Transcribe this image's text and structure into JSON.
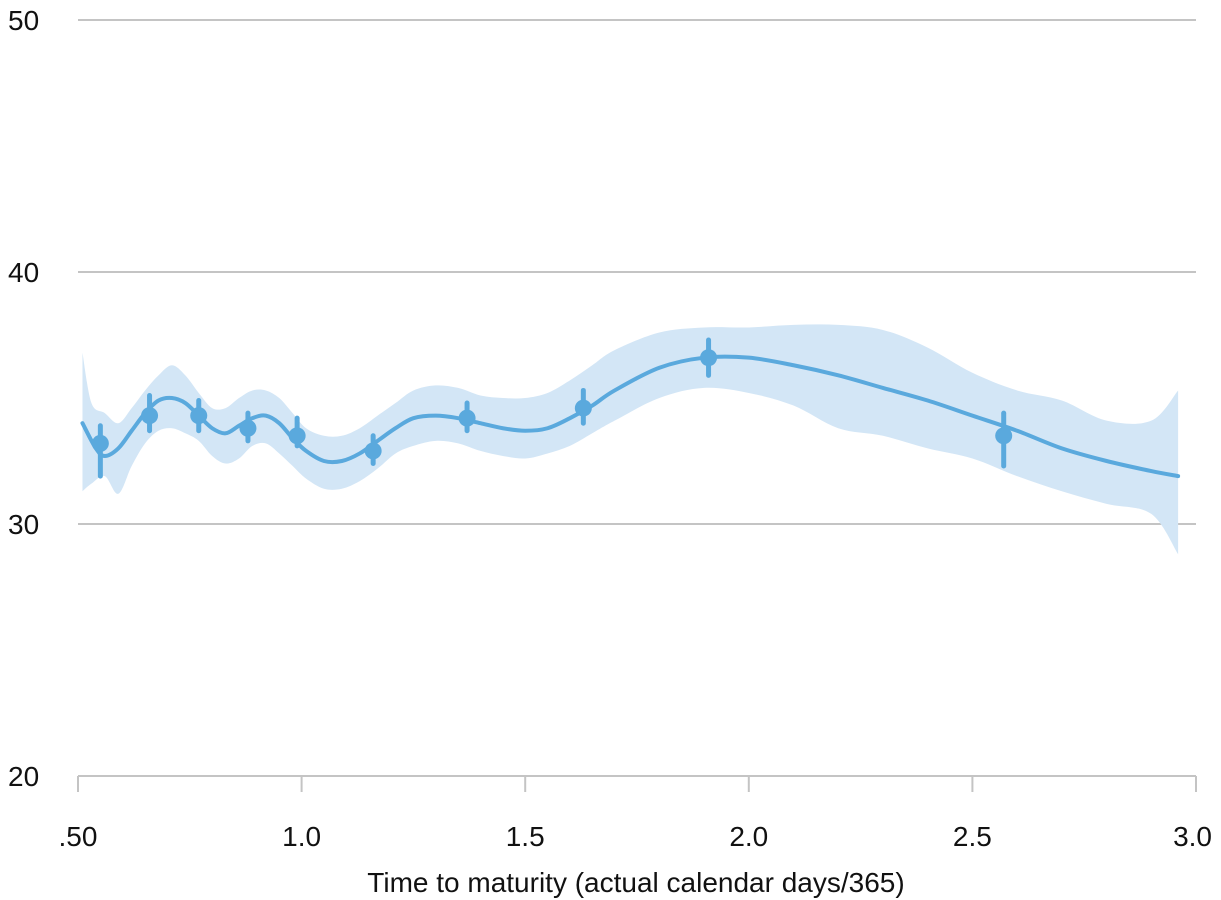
{
  "colors": {
    "line": "#5aa9dd",
    "band": "#d3e6f6",
    "grid": "#c4c4c4",
    "text": "#111111"
  },
  "chart_data": {
    "type": "line",
    "title": "",
    "xlabel": "Time to maturity (actual calendar days/365)",
    "ylabel": "",
    "xlim": [
      0.5,
      3.0
    ],
    "ylim": [
      20,
      50
    ],
    "x_ticks": [
      0.5,
      1.0,
      1.5,
      2.0,
      2.5,
      3.0
    ],
    "x_tick_labels": [
      ".50",
      "1.0",
      "1.5",
      "2.0",
      "2.5",
      "3.0"
    ],
    "y_ticks": [
      20,
      30,
      40,
      50
    ],
    "y_tick_labels": [
      "20",
      "30",
      "40",
      "50"
    ],
    "grid": "horizontal",
    "legend": "none",
    "series": [
      {
        "type": "points_with_error_bars",
        "x": [
          0.55,
          0.66,
          0.77,
          0.88,
          0.99,
          1.16,
          1.37,
          1.63,
          1.91,
          2.57
        ],
        "y": [
          33.2,
          34.3,
          34.3,
          33.8,
          33.5,
          32.9,
          34.2,
          34.6,
          36.6,
          33.5
        ],
        "y_low": [
          31.9,
          33.7,
          33.7,
          33.3,
          33.1,
          32.4,
          33.7,
          34.0,
          35.9,
          32.3
        ],
        "y_high": [
          33.9,
          35.1,
          34.9,
          34.4,
          34.2,
          33.5,
          34.8,
          35.3,
          37.3,
          34.4
        ]
      },
      {
        "type": "fitted_curve",
        "x": [
          0.51,
          0.54,
          0.56,
          0.59,
          0.62,
          0.65,
          0.68,
          0.71,
          0.74,
          0.77,
          0.8,
          0.83,
          0.86,
          0.89,
          0.92,
          0.95,
          0.98,
          1.01,
          1.05,
          1.09,
          1.13,
          1.17,
          1.21,
          1.25,
          1.3,
          1.35,
          1.4,
          1.45,
          1.5,
          1.55,
          1.6,
          1.65,
          1.7,
          1.8,
          1.9,
          2.0,
          2.1,
          2.2,
          2.3,
          2.4,
          2.5,
          2.6,
          2.7,
          2.8,
          2.9,
          2.96
        ],
        "y": [
          34.0,
          33.0,
          32.7,
          33.0,
          33.7,
          34.4,
          34.9,
          35.0,
          34.8,
          34.3,
          33.8,
          33.6,
          33.9,
          34.2,
          34.3,
          34.0,
          33.4,
          32.9,
          32.5,
          32.5,
          32.8,
          33.3,
          33.8,
          34.2,
          34.3,
          34.2,
          34.0,
          33.8,
          33.7,
          33.8,
          34.2,
          34.7,
          35.3,
          36.2,
          36.6,
          36.6,
          36.3,
          35.9,
          35.4,
          34.9,
          34.3,
          33.7,
          33.0,
          32.5,
          32.1,
          31.9
        ]
      },
      {
        "type": "confidence_band",
        "x": [
          0.51,
          0.53,
          0.56,
          0.59,
          0.62,
          0.65,
          0.68,
          0.71,
          0.74,
          0.77,
          0.8,
          0.83,
          0.86,
          0.89,
          0.92,
          0.95,
          0.98,
          1.01,
          1.05,
          1.09,
          1.13,
          1.17,
          1.21,
          1.25,
          1.3,
          1.35,
          1.4,
          1.45,
          1.5,
          1.55,
          1.6,
          1.65,
          1.7,
          1.8,
          1.9,
          2.0,
          2.1,
          2.2,
          2.3,
          2.4,
          2.5,
          2.6,
          2.7,
          2.8,
          2.9,
          2.96
        ],
        "upper": [
          36.8,
          34.8,
          34.4,
          34.0,
          34.6,
          35.3,
          35.9,
          36.3,
          35.9,
          35.2,
          34.6,
          34.6,
          35.0,
          35.3,
          35.3,
          35.0,
          34.4,
          33.8,
          33.5,
          33.5,
          33.8,
          34.3,
          34.8,
          35.3,
          35.5,
          35.4,
          35.1,
          35.0,
          35.0,
          35.2,
          35.7,
          36.3,
          36.9,
          37.6,
          37.8,
          37.8,
          37.9,
          37.9,
          37.7,
          37.0,
          36.0,
          35.3,
          34.9,
          34.1,
          34.1,
          35.3
        ],
        "lower": [
          31.3,
          31.6,
          31.9,
          31.2,
          32.3,
          33.2,
          33.7,
          33.8,
          33.6,
          33.3,
          32.7,
          32.4,
          32.6,
          33.1,
          33.2,
          32.8,
          32.3,
          31.8,
          31.4,
          31.4,
          31.7,
          32.2,
          32.8,
          33.1,
          33.3,
          33.2,
          32.9,
          32.7,
          32.6,
          32.8,
          33.1,
          33.6,
          34.1,
          35.0,
          35.4,
          35.2,
          34.7,
          33.8,
          33.5,
          33.0,
          32.6,
          31.9,
          31.3,
          30.8,
          30.4,
          28.8
        ]
      }
    ]
  }
}
